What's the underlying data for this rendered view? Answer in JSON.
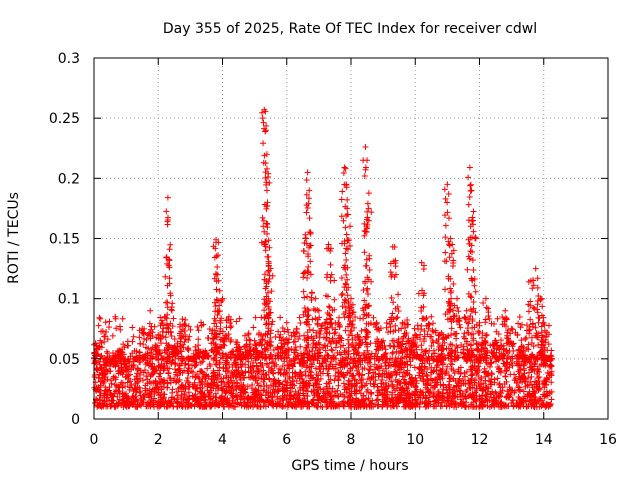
{
  "chart_data": {
    "type": "scatter",
    "title": "Day 355 of 2025, Rate Of TEC Index for receiver cdwl",
    "xlabel": "GPS time / hours",
    "ylabel": "ROTI / TECUs",
    "xlim": [
      0,
      16
    ],
    "ylim": [
      0,
      0.3
    ],
    "xticks": [
      0,
      2,
      4,
      6,
      8,
      10,
      12,
      14,
      16
    ],
    "xtick_labels": [
      "0",
      "2",
      "4",
      "6",
      "8",
      "10",
      "12",
      "14",
      "16"
    ],
    "yticks": [
      0,
      0.05,
      0.1,
      0.15,
      0.2,
      0.25,
      0.3
    ],
    "ytick_labels": [
      "0",
      "0.05",
      "0.1",
      "0.15",
      "0.2",
      "0.25",
      "0.3"
    ],
    "grid": true,
    "marker": "+",
    "color": "#ff0000",
    "data_extent_hours": [
      0,
      14.25
    ],
    "series": [
      {
        "name": "ROTI",
        "x": [
          0.05,
          0.3,
          0.6,
          0.8,
          1.0,
          1.3,
          1.5,
          1.75,
          2.0,
          2.2,
          2.3,
          2.35,
          2.5,
          2.75,
          3.0,
          3.25,
          3.5,
          3.75,
          3.8,
          3.85,
          4.0,
          4.2,
          4.5,
          4.8,
          5.0,
          5.2,
          5.3,
          5.35,
          5.38,
          5.4,
          5.5,
          5.8,
          6.0,
          6.3,
          6.6,
          6.65,
          6.7,
          6.9,
          7.0,
          7.2,
          7.3,
          7.4,
          7.6,
          7.8,
          7.85,
          7.9,
          8.0,
          8.2,
          8.45,
          8.5,
          8.55,
          8.8,
          9.0,
          9.3,
          9.4,
          9.6,
          9.8,
          10.0,
          10.2,
          10.5,
          10.8,
          11.0,
          11.1,
          11.15,
          11.3,
          11.6,
          11.7,
          11.75,
          11.8,
          12.0,
          12.2,
          12.5,
          12.8,
          13.0,
          13.3,
          13.6,
          13.75,
          13.9,
          14.0,
          14.2
        ],
        "y": [
          0.063,
          0.03,
          0.045,
          0.057,
          0.04,
          0.05,
          0.075,
          0.09,
          0.07,
          0.085,
          0.184,
          0.117,
          0.06,
          0.083,
          0.05,
          0.058,
          0.055,
          0.07,
          0.149,
          0.12,
          0.1,
          0.085,
          0.06,
          0.07,
          0.065,
          0.07,
          0.257,
          0.24,
          0.22,
          0.18,
          0.125,
          0.07,
          0.08,
          0.075,
          0.15,
          0.205,
          0.19,
          0.1,
          0.09,
          0.08,
          0.145,
          0.12,
          0.08,
          0.209,
          0.195,
          0.17,
          0.1,
          0.07,
          0.226,
          0.215,
          0.175,
          0.08,
          0.065,
          0.143,
          0.12,
          0.08,
          0.065,
          0.07,
          0.13,
          0.085,
          0.07,
          0.195,
          0.15,
          0.145,
          0.1,
          0.09,
          0.209,
          0.19,
          0.165,
          0.08,
          0.1,
          0.065,
          0.09,
          0.075,
          0.06,
          0.115,
          0.125,
          0.1,
          0.08,
          0.05
        ],
        "baseline_range": [
          0.01,
          0.05
        ]
      }
    ]
  }
}
